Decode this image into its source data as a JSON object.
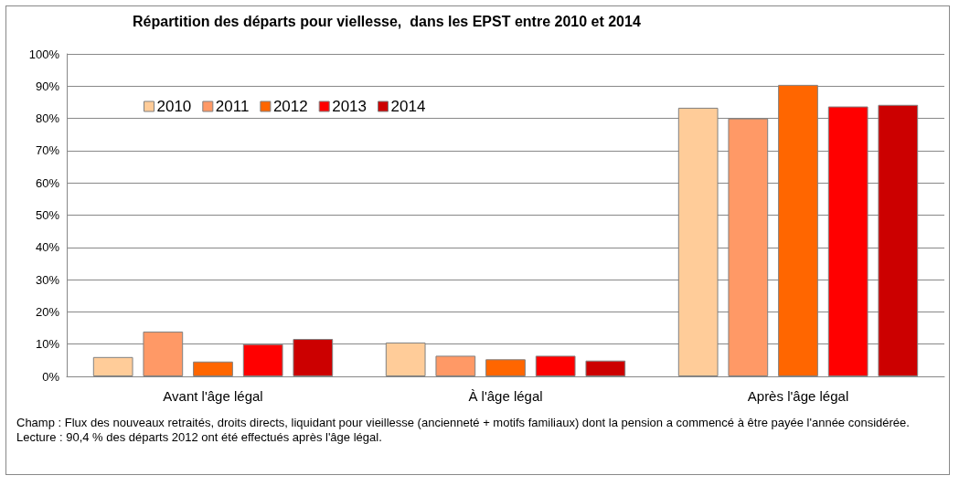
{
  "chart_data": {
    "type": "bar",
    "title": "Répartition des départs pour viellesse,  dans les EPST entre 2010 et 2014",
    "categories": [
      "Avant l'âge légal",
      "À l'âge légal",
      "Après l'âge légal"
    ],
    "series": [
      {
        "name": "2010",
        "color": "#ffcc99",
        "values": [
          6.0,
          10.5,
          83.3
        ]
      },
      {
        "name": "2011",
        "color": "#ff9966",
        "values": [
          13.9,
          6.4,
          80.0
        ]
      },
      {
        "name": "2012",
        "color": "#ff6600",
        "values": [
          4.6,
          5.3,
          90.4
        ]
      },
      {
        "name": "2013",
        "color": "#ff0000",
        "values": [
          10.0,
          6.4,
          83.7
        ]
      },
      {
        "name": "2014",
        "color": "#cc0000",
        "values": [
          11.6,
          4.9,
          84.2
        ]
      }
    ],
    "ylim": [
      0,
      100
    ],
    "yticks": [
      {
        "value": 0,
        "label": "0%"
      },
      {
        "value": 10,
        "label": "10%"
      },
      {
        "value": 20,
        "label": "20%"
      },
      {
        "value": 30,
        "label": "30%"
      },
      {
        "value": 40,
        "label": "40%"
      },
      {
        "value": 50,
        "label": "50%"
      },
      {
        "value": 60,
        "label": "60%"
      },
      {
        "value": 70,
        "label": "70%"
      },
      {
        "value": 80,
        "label": "80%"
      },
      {
        "value": 90,
        "label": "90%"
      },
      {
        "value": 100,
        "label": "100%"
      }
    ],
    "grid": "y",
    "legend": "top left",
    "annotations": [
      "Champ : Flux des nouveaux  retraités, droits directs, liquidant pour vieillesse (ancienneté + motifs familiaux) dont la pension a commencé à être payée l'année considérée.",
      "Lecture : 90,4 % des départs 2012 ont été effectués après l'âge légal."
    ]
  }
}
